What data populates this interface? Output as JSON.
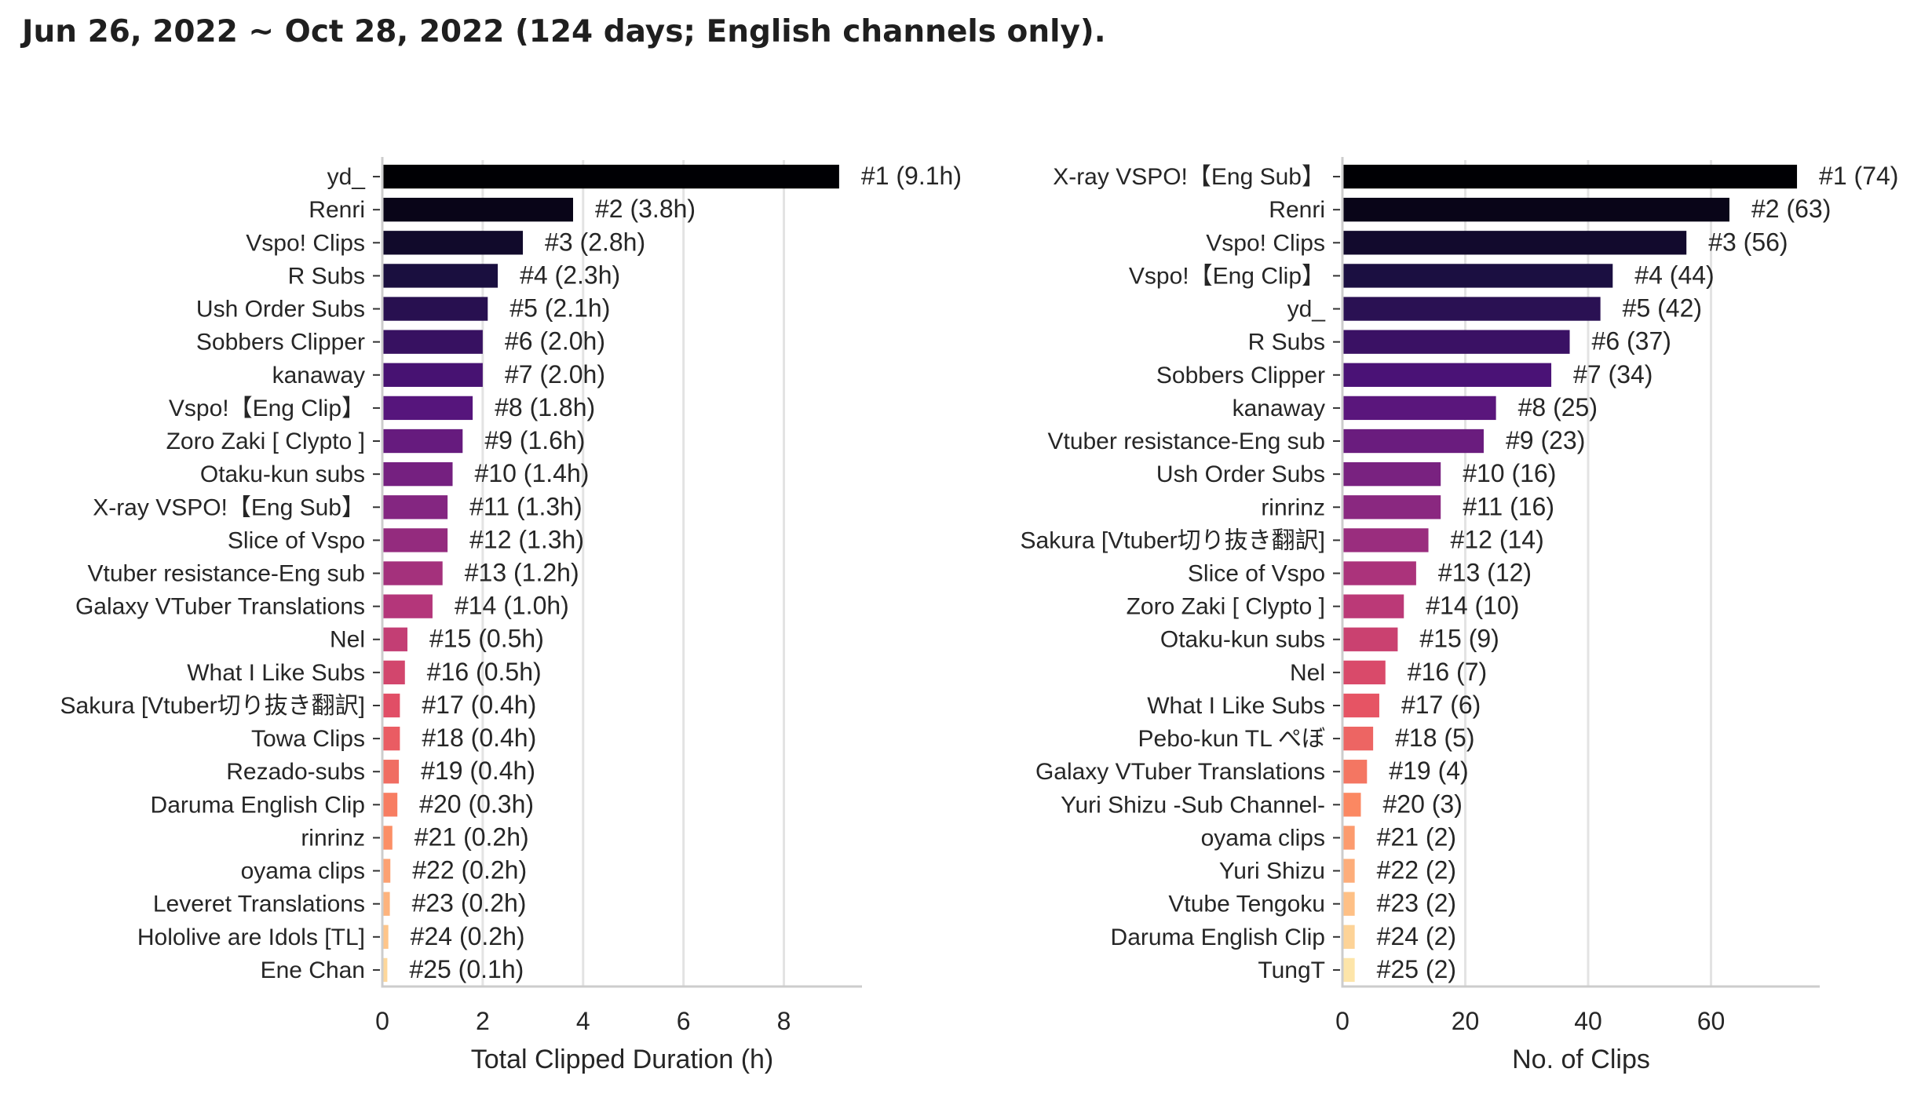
{
  "page_title": "Jun 26, 2022 ~ Oct 28, 2022 (124 days; English channels only).",
  "chart_data": [
    {
      "type": "bar",
      "orientation": "horizontal",
      "title": "",
      "xlabel": "Total Clipped Duration (h)",
      "ylabel": "",
      "xlim": [
        0,
        9.555
      ],
      "xticks": [
        0,
        2,
        4,
        6,
        8
      ],
      "grid": "vertical",
      "categories": [
        "yd_",
        "Renri",
        "Vspo! Clips",
        "R Subs",
        "Ush Order Subs",
        "Sobbers Clipper",
        "kanaway",
        "Vspo!【Eng Clip】",
        "Zoro Zaki [ Clypto ]",
        "Otaku-kun subs",
        "X-ray VSPO!【Eng Sub】",
        "Slice of Vspo",
        "Vtuber resistance-Eng sub",
        "Galaxy VTuber Translations",
        "Nel",
        "What I Like Subs",
        "Sakura [Vtuber切り抜き翻訳]",
        "Towa Clips",
        "Rezado-subs",
        "Daruma English Clip",
        "rinrinz",
        "oyama clips",
        "Leveret Translations",
        "Hololive are Idols [TL]",
        "Ene Chan"
      ],
      "values": [
        9.1,
        3.8,
        2.8,
        2.3,
        2.1,
        2.0,
        2.0,
        1.8,
        1.6,
        1.4,
        1.3,
        1.3,
        1.2,
        1.0,
        0.5,
        0.45,
        0.35,
        0.35,
        0.33,
        0.3,
        0.2,
        0.16,
        0.15,
        0.12,
        0.1
      ],
      "data_labels": [
        "#1 (9.1h)",
        "#2 (3.8h)",
        "#3 (2.8h)",
        "#4 (2.3h)",
        "#5 (2.1h)",
        "#6 (2.0h)",
        "#7 (2.0h)",
        "#8 (1.8h)",
        "#9 (1.6h)",
        "#10 (1.4h)",
        "#11 (1.3h)",
        "#12 (1.3h)",
        "#13 (1.2h)",
        "#14 (1.0h)",
        "#15 (0.5h)",
        "#16 (0.5h)",
        "#17 (0.4h)",
        "#18 (0.4h)",
        "#19 (0.4h)",
        "#20 (0.3h)",
        "#21 (0.2h)",
        "#22 (0.2h)",
        "#23 (0.2h)",
        "#24 (0.2h)",
        "#25 (0.1h)"
      ],
      "colormap": "magma"
    },
    {
      "type": "bar",
      "orientation": "horizontal",
      "title": "",
      "xlabel": "No. of Clips",
      "ylabel": "",
      "xlim": [
        0,
        77.7
      ],
      "xticks": [
        0,
        20,
        40,
        60
      ],
      "grid": "vertical",
      "categories": [
        "X-ray VSPO!【Eng Sub】",
        "Renri",
        "Vspo! Clips",
        "Vspo!【Eng Clip】",
        "yd_",
        "R Subs",
        "Sobbers Clipper",
        "kanaway",
        "Vtuber resistance-Eng sub",
        "Ush Order Subs",
        "rinrinz",
        "Sakura [Vtuber切り抜き翻訳]",
        "Slice of Vspo",
        "Zoro Zaki [ Clypto ]",
        "Otaku-kun subs",
        "Nel",
        "What I Like Subs",
        "Pebo-kun TL ぺぼ",
        "Galaxy VTuber Translations",
        "Yuri Shizu -Sub Channel-",
        "oyama clips",
        "Yuri Shizu",
        "Vtube Tengoku",
        "Daruma English Clip",
        "TungT"
      ],
      "values": [
        74,
        63,
        56,
        44,
        42,
        37,
        34,
        25,
        23,
        16,
        16,
        14,
        12,
        10,
        9,
        7,
        6,
        5,
        4,
        3,
        2,
        2,
        2,
        2,
        2
      ],
      "data_labels": [
        "#1 (74)",
        "#2 (63)",
        "#3 (56)",
        "#4 (44)",
        "#5 (42)",
        "#6 (37)",
        "#7 (34)",
        "#8 (25)",
        "#9 (23)",
        "#10 (16)",
        "#11 (16)",
        "#12 (14)",
        "#13 (12)",
        "#14 (10)",
        "#15 (9)",
        "#16 (7)",
        "#17 (6)",
        "#18 (5)",
        "#19 (4)",
        "#20 (3)",
        "#21 (2)",
        "#22 (2)",
        "#23 (2)",
        "#24 (2)",
        "#25 (2)"
      ],
      "colormap": "magma"
    }
  ]
}
